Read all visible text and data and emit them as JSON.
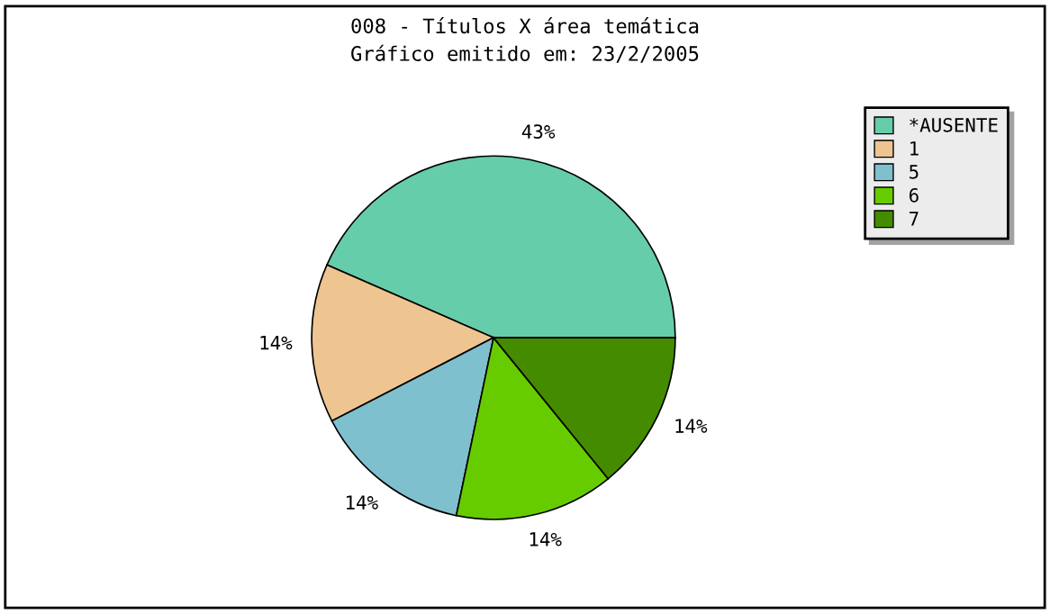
{
  "chart_data": {
    "type": "pie",
    "title": "008 - Títulos X área temática",
    "subtitle": "Gráfico emitido em: 23/2/2005",
    "categories": [
      "*AUSENTE",
      "1",
      "5",
      "6",
      "7"
    ],
    "values": [
      43,
      14,
      14,
      14,
      14
    ],
    "colors": [
      "#66cdaa",
      "#eec591",
      "#7ec0ce",
      "#66cc00",
      "#458b00"
    ],
    "value_labels": [
      "43%",
      "14%",
      "14%",
      "14%",
      "14%"
    ],
    "legend": "right"
  }
}
